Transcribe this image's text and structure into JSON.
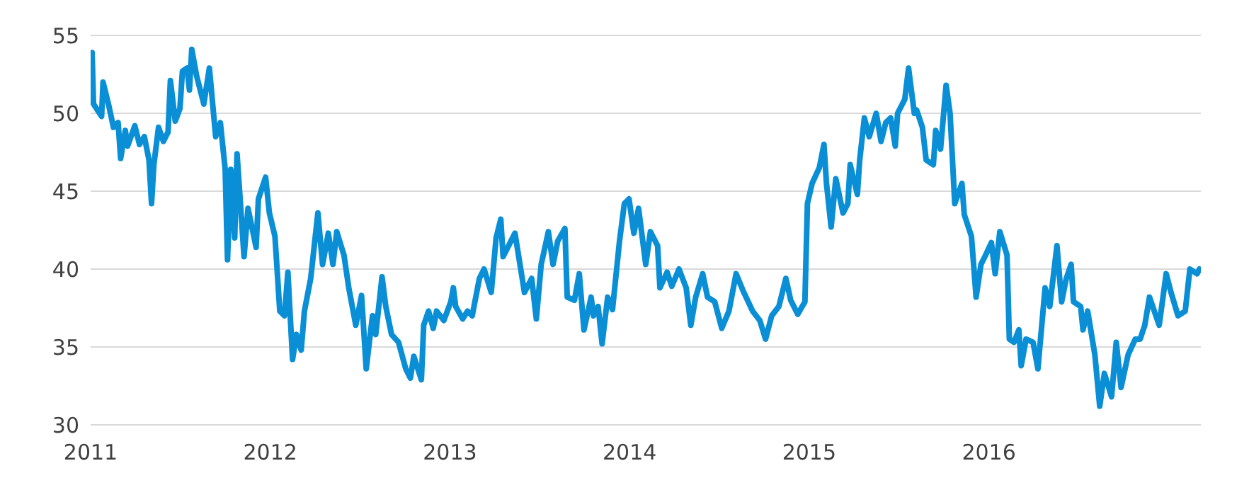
{
  "chart_data": {
    "type": "line",
    "xlim": [
      2011,
      2017.18
    ],
    "xticks": [
      2011,
      2012,
      2013,
      2014,
      2015,
      2016
    ],
    "ylim": [
      30,
      55
    ],
    "yticks": [
      30,
      35,
      40,
      45,
      50,
      55
    ],
    "grid": "y",
    "line_style": "solid",
    "series": [
      {
        "color": "#0a8fd6",
        "x": [
          2011.008,
          2011.016,
          2011.061,
          2011.069,
          2011.101,
          2011.127,
          2011.153,
          2011.167,
          2011.193,
          2011.206,
          2011.246,
          2011.272,
          2011.299,
          2011.325,
          2011.339,
          2011.352,
          2011.378,
          2011.405,
          2011.431,
          2011.444,
          2011.471,
          2011.497,
          2011.511,
          2011.537,
          2011.55,
          2011.563,
          2011.59,
          2011.63,
          2011.661,
          2011.696,
          2011.722,
          2011.749,
          2011.762,
          2011.78,
          2011.802,
          2011.815,
          2011.854,
          2011.876,
          2011.921,
          2011.934,
          2011.974,
          2011.995,
          2012.026,
          2012.053,
          2012.079,
          2012.098,
          2012.124,
          2012.146,
          2012.172,
          2012.19,
          2012.225,
          2012.265,
          2012.291,
          2012.323,
          2012.349,
          2012.37,
          2012.41,
          2012.437,
          2012.476,
          2012.508,
          2012.534,
          2012.569,
          2012.587,
          2012.622,
          2012.643,
          2012.675,
          2012.714,
          2012.754,
          2012.78,
          2012.799,
          2012.841,
          2012.854,
          2012.881,
          2012.907,
          2012.926,
          2012.966,
          2013.005,
          2013.019,
          2013.032,
          2013.071,
          2013.098,
          2013.124,
          2013.164,
          2013.19,
          2013.23,
          2013.257,
          2013.283,
          2013.296,
          2013.362,
          2013.415,
          2013.455,
          2013.481,
          2013.508,
          2013.548,
          2013.574,
          2013.6,
          2013.64,
          2013.653,
          2013.693,
          2013.72,
          2013.746,
          2013.786,
          2013.799,
          2013.825,
          2013.847,
          2013.878,
          2013.905,
          2013.944,
          2013.971,
          2013.997,
          2014.024,
          2014.05,
          2014.09,
          2014.116,
          2014.156,
          2014.169,
          2014.209,
          2014.235,
          2014.275,
          2014.315,
          2014.341,
          2014.368,
          2014.407,
          2014.434,
          2014.474,
          2014.513,
          2014.553,
          2014.593,
          2014.632,
          2014.685,
          2014.725,
          2014.757,
          2014.791,
          2014.831,
          2014.87,
          2014.897,
          2014.936,
          2014.976,
          2014.99,
          2015.016,
          2015.056,
          2015.082,
          2015.096,
          2015.122,
          2015.148,
          2015.188,
          2015.215,
          2015.228,
          2015.268,
          2015.281,
          2015.307,
          2015.334,
          2015.373,
          2015.4,
          2015.426,
          2015.453,
          2015.479,
          2015.492,
          2015.532,
          2015.553,
          2015.585,
          2015.598,
          2015.63,
          2015.651,
          2015.691,
          2015.704,
          2015.731,
          2015.762,
          2015.784,
          2015.81,
          2015.85,
          2015.863,
          2015.903,
          2015.929,
          2015.956,
          2015.982,
          2016.014,
          2016.035,
          2016.061,
          2016.101,
          2016.114,
          2016.14,
          2016.167,
          2016.18,
          2016.207,
          2016.246,
          2016.273,
          2016.313,
          2016.339,
          2016.379,
          2016.405,
          2016.431,
          2016.458,
          2016.471,
          2016.511,
          2016.524,
          2016.55,
          2016.59,
          2016.617,
          2016.643,
          2016.683,
          2016.709,
          2016.736,
          2016.775,
          2016.815,
          2016.842,
          2016.868,
          2016.894,
          2016.948,
          2016.987,
          2017.014,
          2017.053,
          2017.093,
          2017.119,
          2017.159,
          2017.172
        ],
        "values": [
          53.9,
          50.6,
          49.8,
          52.0,
          50.5,
          49.1,
          49.4,
          47.1,
          48.9,
          47.9,
          49.2,
          48.0,
          48.5,
          47.0,
          44.2,
          46.7,
          49.1,
          48.2,
          48.8,
          52.1,
          49.5,
          50.3,
          52.7,
          52.9,
          51.5,
          54.1,
          52.4,
          50.6,
          52.9,
          48.5,
          49.4,
          46.4,
          40.6,
          46.4,
          42.0,
          47.4,
          40.8,
          43.9,
          41.4,
          44.5,
          45.9,
          43.6,
          42.1,
          37.3,
          37.0,
          39.8,
          34.2,
          35.8,
          34.8,
          37.3,
          39.4,
          43.6,
          40.3,
          42.3,
          40.3,
          42.4,
          40.9,
          38.8,
          36.4,
          38.3,
          33.6,
          37.0,
          35.8,
          39.5,
          37.6,
          35.8,
          35.3,
          33.6,
          33.0,
          34.4,
          32.9,
          36.4,
          37.3,
          36.2,
          37.3,
          36.7,
          37.9,
          38.8,
          37.6,
          36.8,
          37.3,
          37.0,
          39.4,
          40.0,
          38.5,
          42.0,
          43.2,
          40.8,
          42.3,
          38.5,
          39.4,
          36.8,
          40.3,
          42.4,
          40.3,
          41.8,
          42.6,
          38.2,
          38.0,
          39.7,
          36.1,
          38.2,
          37.0,
          37.6,
          35.2,
          38.2,
          37.4,
          41.8,
          44.2,
          44.5,
          42.3,
          43.9,
          40.3,
          42.4,
          41.5,
          38.8,
          39.8,
          38.9,
          40.0,
          38.8,
          36.4,
          38.2,
          39.7,
          38.2,
          37.9,
          36.2,
          37.3,
          39.7,
          38.6,
          37.3,
          36.7,
          35.5,
          37.0,
          37.6,
          39.4,
          38.0,
          37.1,
          37.9,
          44.2,
          45.5,
          46.5,
          48.0,
          45.5,
          42.7,
          45.8,
          43.6,
          44.2,
          46.7,
          44.8,
          47.0,
          49.7,
          48.5,
          50.0,
          48.2,
          49.4,
          49.7,
          47.9,
          50.0,
          50.9,
          52.9,
          50.0,
          50.2,
          49.1,
          47.0,
          46.7,
          48.9,
          47.7,
          51.8,
          50.0,
          44.2,
          45.5,
          43.5,
          42.1,
          38.2,
          40.3,
          40.9,
          41.7,
          39.7,
          42.4,
          40.9,
          35.5,
          35.3,
          36.1,
          33.8,
          35.5,
          35.3,
          33.6,
          38.8,
          37.6,
          41.5,
          37.9,
          39.4,
          40.3,
          37.9,
          37.6,
          36.1,
          37.3,
          34.5,
          31.2,
          33.3,
          31.8,
          35.3,
          32.4,
          34.5,
          35.5,
          35.5,
          36.4,
          38.2,
          36.4,
          39.7,
          38.5,
          37.0,
          37.3,
          40.0,
          39.7,
          40.0
        ]
      }
    ]
  }
}
